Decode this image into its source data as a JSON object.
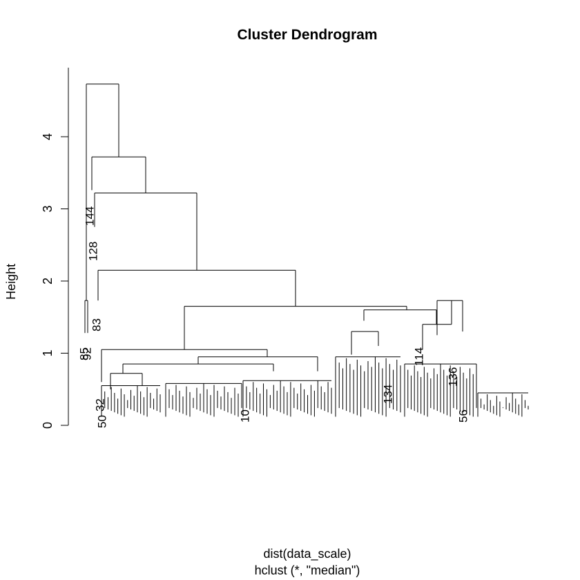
{
  "chart_data": {
    "type": "dendrogram",
    "title": "Cluster Dendrogram",
    "ylabel": "Height",
    "xlabel": "dist(data_scale)",
    "sublabel": "hclust (*, \"median\")",
    "ylim": [
      0,
      4.9
    ],
    "y_ticks": [
      0,
      1,
      2,
      3,
      4
    ],
    "merges": [
      {
        "left": 0,
        "right": 1,
        "height": 4.73
      },
      {
        "left": 0,
        "right": 1,
        "height": 3.72
      },
      {
        "left": 0,
        "right": 1,
        "height": 3.22
      },
      {
        "left": 0,
        "right": 1,
        "height": 2.15
      },
      {
        "left": 0,
        "right": 1,
        "height": 1.65
      },
      {
        "left": 0,
        "right": 1,
        "height": 1.05
      },
      {
        "left": 0,
        "right": 1,
        "height": 0.95
      },
      {
        "left": 0,
        "right": 1,
        "height": 0.85
      },
      {
        "left": 0,
        "right": 1,
        "height": 0.72
      },
      {
        "left": 0,
        "right": 1,
        "height": 1.6
      },
      {
        "left": 0,
        "right": 1,
        "height": 1.4
      },
      {
        "left": 0,
        "right": 1,
        "height": 1.73
      },
      {
        "left": 0,
        "right": 1,
        "height": 1.3
      }
    ],
    "readable_leaf_labels": [
      "85",
      "92",
      "144",
      "128",
      "83",
      "32",
      "50",
      "10",
      "114",
      "136",
      "56",
      "134"
    ]
  }
}
